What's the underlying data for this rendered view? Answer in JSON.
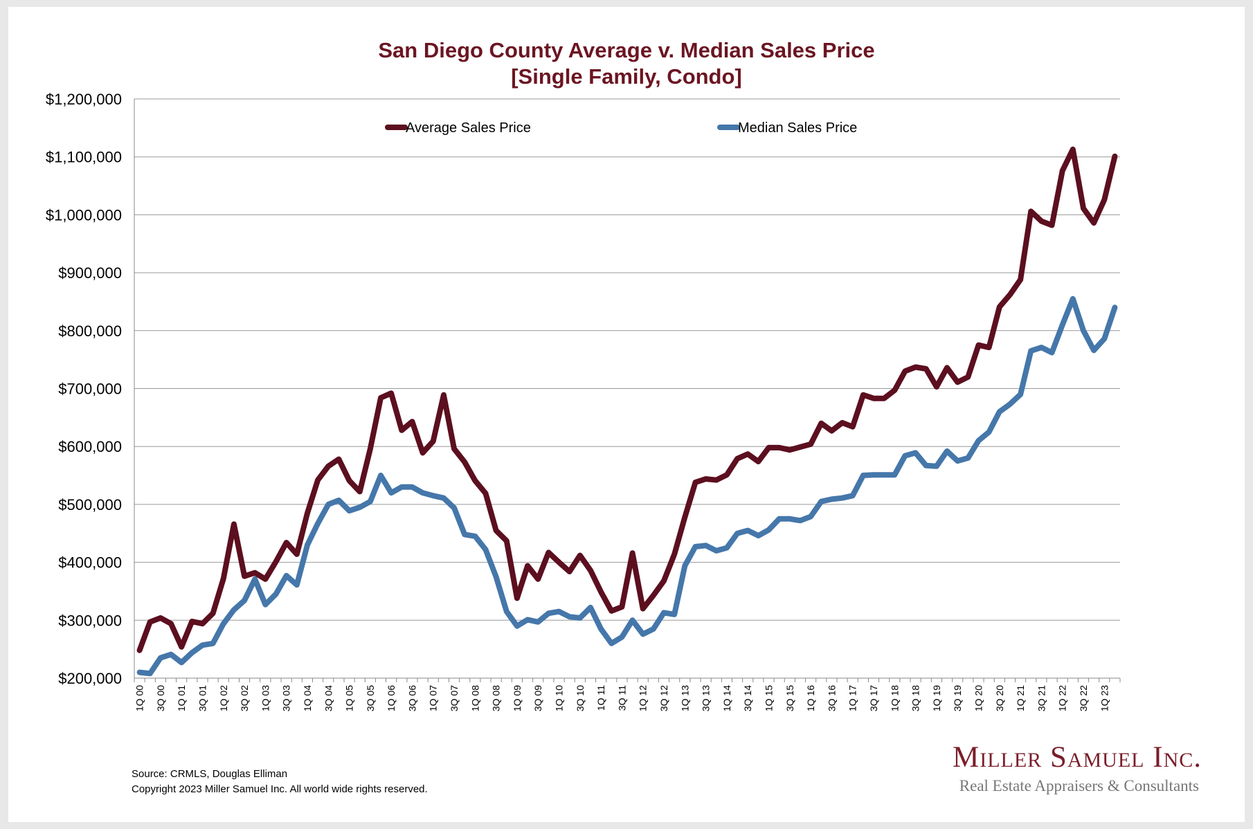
{
  "footer": {
    "source": "Source: CRMLS, Douglas Elliman",
    "copyright": "Copyright 2023 Miller Samuel Inc.  All world wide rights reserved."
  },
  "logo": {
    "name": "Miller Samuel Inc.",
    "tagline": "Real Estate Appraisers & Consultants"
  },
  "colors": {
    "average": "#5c0f1f",
    "median": "#4577aa",
    "title": "#6b1522",
    "grid": "#999999"
  },
  "chart_data": {
    "type": "line",
    "title": "San Diego County Average v. Median Sales Price",
    "subtitle": "[Single Family, Condo]",
    "legend_position": "top",
    "grid": true,
    "ylim": [
      200000,
      1200000
    ],
    "yticks": [
      "$200,000",
      "$300,000",
      "$400,000",
      "$500,000",
      "$600,000",
      "$700,000",
      "$800,000",
      "$900,000",
      "$1,000,000",
      "$1,100,000",
      "$1,200,000"
    ],
    "x": [
      "1Q 00",
      "2Q 00",
      "3Q 00",
      "4Q 00",
      "1Q 01",
      "2Q 01",
      "3Q 01",
      "4Q 01",
      "1Q 02",
      "2Q 02",
      "3Q 02",
      "4Q 02",
      "1Q 03",
      "2Q 03",
      "3Q 03",
      "4Q 03",
      "1Q 04",
      "2Q 04",
      "3Q 04",
      "4Q 04",
      "1Q 05",
      "2Q 05",
      "3Q 05",
      "4Q 05",
      "1Q 06",
      "2Q 06",
      "3Q 06",
      "4Q 06",
      "1Q 07",
      "2Q 07",
      "3Q 07",
      "4Q 07",
      "1Q 08",
      "2Q 08",
      "3Q 08",
      "4Q 08",
      "1Q 09",
      "2Q 09",
      "3Q 09",
      "4Q 09",
      "1Q 10",
      "2Q 10",
      "3Q 10",
      "4Q 10",
      "1Q 11",
      "2Q 11",
      "3Q 11",
      "4Q 11",
      "1Q 12",
      "2Q 12",
      "3Q 12",
      "4Q 12",
      "1Q 13",
      "2Q 13",
      "3Q 13",
      "4Q 13",
      "1Q 14",
      "2Q 14",
      "3Q 14",
      "4Q 14",
      "1Q 15",
      "2Q 15",
      "3Q 15",
      "4Q 15",
      "1Q 16",
      "2Q 16",
      "3Q 16",
      "4Q 16",
      "1Q 17",
      "2Q 17",
      "3Q 17",
      "4Q 17",
      "1Q 18",
      "2Q 18",
      "3Q 18",
      "4Q 18",
      "1Q 19",
      "2Q 19",
      "3Q 19",
      "4Q 19",
      "1Q 20",
      "2Q 20",
      "3Q 20",
      "4Q 20",
      "1Q 21",
      "2Q 21",
      "3Q 21",
      "4Q 21",
      "1Q 22",
      "2Q 22",
      "3Q 22",
      "4Q 22",
      "1Q 23",
      "2Q 23"
    ],
    "x_tick_labels": [
      "1Q 00",
      "3Q 00",
      "1Q 01",
      "3Q 01",
      "1Q 02",
      "3Q 02",
      "1Q 03",
      "3Q 03",
      "1Q 04",
      "3Q 04",
      "1Q 05",
      "3Q 05",
      "1Q 06",
      "3Q 06",
      "1Q 07",
      "3Q 07",
      "1Q 08",
      "3Q 08",
      "1Q 09",
      "3Q 09",
      "1Q 10",
      "3Q 10",
      "1Q 11",
      "3Q 11",
      "1Q 12",
      "3Q 12",
      "1Q 13",
      "3Q 13",
      "1Q 14",
      "3Q 14",
      "1Q 15",
      "3Q 15",
      "1Q 16",
      "3Q 16",
      "1Q 17",
      "3Q 17",
      "1Q 18",
      "3Q 18",
      "1Q 19",
      "3Q 19",
      "1Q 20",
      "3Q 20",
      "1Q 21",
      "3Q 21",
      "1Q 22",
      "3Q 22",
      "1Q 23"
    ],
    "series": [
      {
        "name": "Average Sales Price",
        "values": [
          248000,
          297000,
          304000,
          294000,
          254000,
          298000,
          294000,
          312000,
          372000,
          466000,
          376000,
          382000,
          371000,
          401000,
          434000,
          414000,
          485000,
          542000,
          566000,
          578000,
          541000,
          522000,
          596000,
          684000,
          692000,
          628000,
          643000,
          589000,
          609000,
          689000,
          596000,
          573000,
          541000,
          519000,
          455000,
          437000,
          338000,
          394000,
          371000,
          417000,
          400000,
          384000,
          412000,
          386000,
          349000,
          316000,
          323000,
          416000,
          320000,
          343000,
          368000,
          414000,
          478000,
          538000,
          544000,
          542000,
          551000,
          579000,
          587000,
          574000,
          598000,
          598000,
          594000,
          599000,
          604000,
          640000,
          627000,
          641000,
          634000,
          689000,
          683000,
          683000,
          697000,
          730000,
          737000,
          734000,
          703000,
          736000,
          711000,
          720000,
          775000,
          771000,
          841000,
          862000,
          888000,
          1006000,
          989000,
          982000,
          1076000,
          1113000,
          1011000,
          986000,
          1026000,
          1101000
        ]
      },
      {
        "name": "Median Sales Price",
        "values": [
          210000,
          208000,
          235000,
          241000,
          227000,
          244000,
          257000,
          260000,
          294000,
          318000,
          334000,
          371000,
          327000,
          345000,
          377000,
          361000,
          430000,
          467000,
          500000,
          507000,
          489000,
          495000,
          505000,
          550000,
          520000,
          530000,
          530000,
          520000,
          515000,
          511000,
          494000,
          448000,
          445000,
          422000,
          375000,
          315000,
          290000,
          301000,
          297000,
          312000,
          315000,
          306000,
          304000,
          322000,
          285000,
          260000,
          271000,
          300000,
          276000,
          285000,
          313000,
          310000,
          394000,
          427000,
          429000,
          420000,
          425000,
          450000,
          455000,
          446000,
          456000,
          475000,
          475000,
          472000,
          479000,
          505000,
          509000,
          511000,
          515000,
          550000,
          551000,
          551000,
          551000,
          584000,
          589000,
          567000,
          566000,
          592000,
          575000,
          580000,
          610000,
          625000,
          660000,
          673000,
          690000,
          765000,
          771000,
          762000,
          810000,
          855000,
          800000,
          766000,
          786000,
          840000
        ]
      }
    ]
  }
}
